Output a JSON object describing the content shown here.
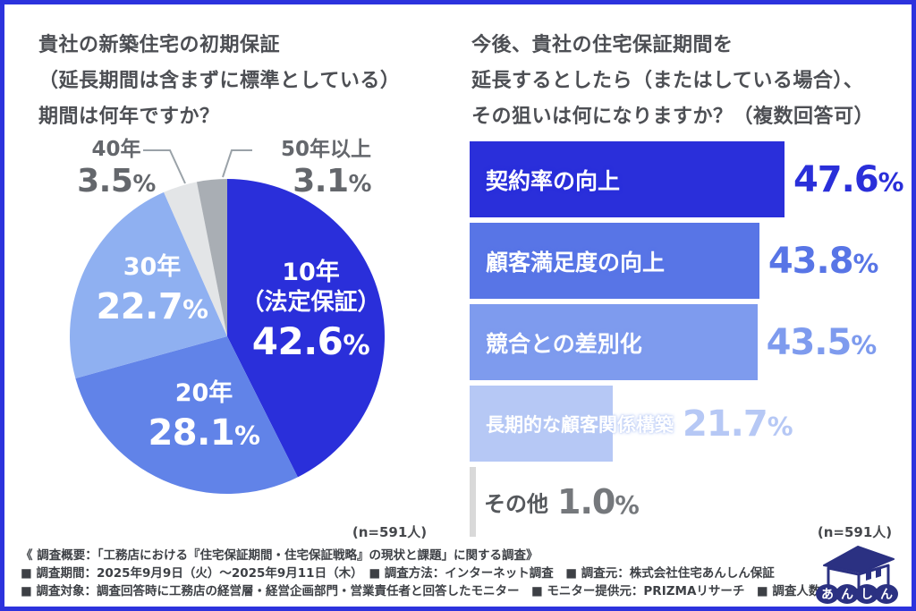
{
  "page": {
    "background": "#ffffff",
    "frame_color": "#2c33dd"
  },
  "left_chart": {
    "title_lines": [
      "貴社の新築住宅の初期保証",
      "（延長期間は含まずに標準としている）",
      "期間は何年ですか？"
    ],
    "n_label": "(n=591人)"
  },
  "right_chart": {
    "title_lines": [
      "今後、貴社の住宅保証期間を",
      "延長するとしたら（またはしている場合）、",
      "その狙いは何になりますか？（複数回答可）"
    ],
    "n_label": "(n=591人)"
  },
  "chart_data": [
    {
      "type": "pie",
      "title": "貴社の新築住宅の初期保証（延長期間は含まずに標準としている）期間は何年ですか？",
      "n": "n=591人",
      "start_angle_deg": 0,
      "direction": "clockwise",
      "slices": [
        {
          "label": "10年",
          "sublabel": "（法定保証）",
          "value": 42.6,
          "pct": "42.6%",
          "color": "#2a2fda",
          "label_color": "#ffffff"
        },
        {
          "label": "20年",
          "value": 28.1,
          "pct": "28.1%",
          "color": "#6183e8",
          "label_color": "#ffffff"
        },
        {
          "label": "30年",
          "value": 22.7,
          "pct": "22.7%",
          "color": "#8fb0f1",
          "label_color": "#ffffff"
        },
        {
          "label": "40年",
          "value": 3.5,
          "pct": "3.5%",
          "color": "#e3e5e7",
          "label_color": "#64676c"
        },
        {
          "label": "50年以上",
          "value": 3.1,
          "pct": "3.1%",
          "color": "#a9aeb4",
          "label_color": "#64676c"
        }
      ],
      "leader_line_color": "#9aa2a8"
    },
    {
      "type": "bar",
      "orientation": "horizontal",
      "title": "今後、貴社の住宅保証期間を延長するとしたら（またはしている場合）、その狙いは何になりますか？（複数回答可）",
      "n": "n=591人",
      "xlim": [
        0,
        50
      ],
      "items": [
        {
          "label": "契約率の向上",
          "value": 47.6,
          "pct": "47.6%",
          "color": "#2a2fda",
          "value_color": "#2a2fd9",
          "label_color": "#ffffff",
          "label_inside": true
        },
        {
          "label": "顧客満足度の向上",
          "value": 43.8,
          "pct": "43.8%",
          "color": "#5875e6",
          "value_color": "#5875e6",
          "label_color": "#ffffff",
          "label_inside": true
        },
        {
          "label": "競合との差別化",
          "value": 43.5,
          "pct": "43.5%",
          "color": "#7e9bee",
          "value_color": "#7e9bee",
          "label_color": "#ffffff",
          "label_inside": true
        },
        {
          "label": "長期的な顧客関係構築",
          "value": 21.7,
          "pct": "21.7%",
          "color": "#b6c8f5",
          "value_color": "#b6c8f5",
          "label_color": "#ffffff",
          "label_inside": true
        },
        {
          "label": "その他",
          "value": 1.0,
          "pct": "1.0%",
          "color": "#d9d9d9",
          "value_color": "#75787c",
          "label_color": "#55585c",
          "label_inside": false
        }
      ]
    }
  ],
  "footer": {
    "lines": [
      "《 調査概要：「工務店における『住宅保証期間・住宅保証戦略』の現状と課題」に関する調査》",
      "■ 調査期間：2025年9月9日（火）〜2025年9月11日（木）　■ 調査方法：インターネット調査　■ 調査元：株式会社住宅あんしん保証",
      "■ 調査対象：調査回答時に工務店の経営層・経営企画部門・営業責任者と回答したモニター　■ モニター提供元：PRIZMAリサーチ　■ 調査人数：591人"
    ]
  },
  "logo": {
    "name": "あんしん",
    "characters": [
      "あ",
      "ん",
      "し",
      "ん"
    ],
    "color": "#2b3182"
  }
}
